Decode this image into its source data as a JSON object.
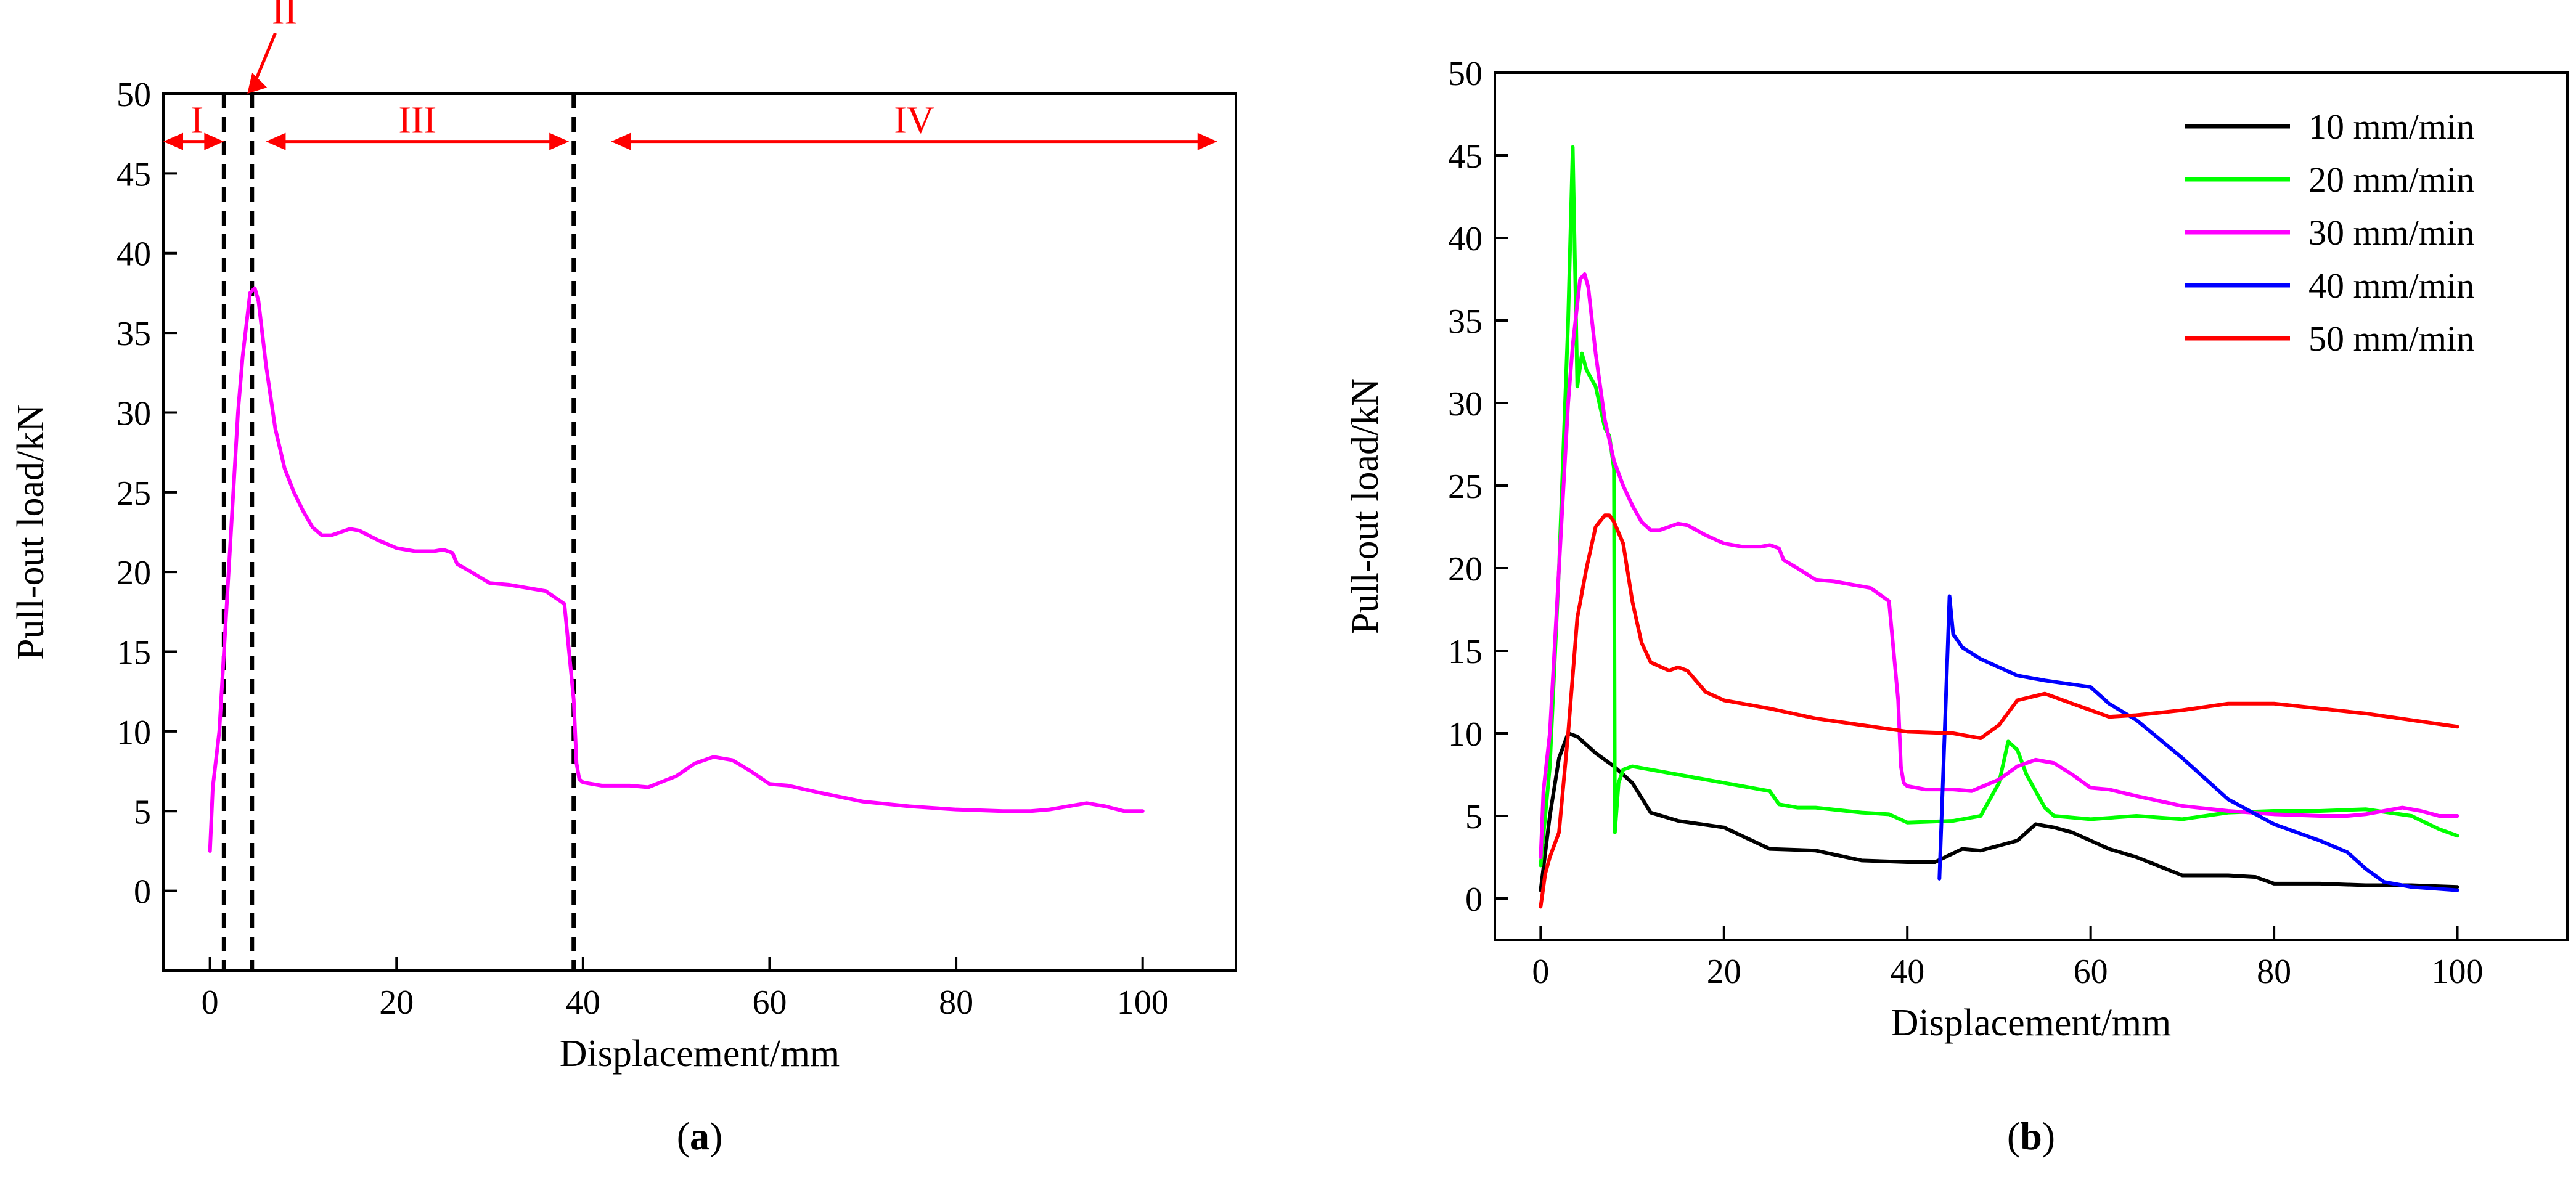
{
  "chart_data": [
    {
      "panel": "a",
      "caption": "(a)",
      "caption_open": "(",
      "caption_letter": "a",
      "caption_close": ")",
      "type": "line",
      "xlabel": "Displacement/mm",
      "ylabel": "Pull-out load/kN",
      "xlim": [
        -5,
        110
      ],
      "ylim": [
        -5,
        50
      ],
      "xticks": [
        0,
        20,
        40,
        60,
        80,
        100
      ],
      "yticks": [
        0,
        5,
        10,
        15,
        20,
        25,
        30,
        35,
        40,
        45,
        50
      ],
      "grid": false,
      "line_color": "#ff00ff",
      "stage_divider_color": "#000000",
      "stage_color": "#ff0000",
      "stage_dividers_x": [
        1.5,
        4.5,
        39
      ],
      "stages": [
        {
          "label": "I",
          "x_from": -5,
          "x_to": 1.5,
          "y": 47
        },
        {
          "label": "II",
          "x_at": 4,
          "y": 50,
          "arrow_from": [
            7,
            53.8
          ]
        },
        {
          "label": "III",
          "x_from": 6,
          "x_to": 38.5,
          "y": 47
        },
        {
          "label": "IV",
          "x_from": 43,
          "x_to": 108,
          "y": 47
        }
      ],
      "series": [
        {
          "name": "30 mm/min",
          "color": "#ff00ff",
          "x": [
            0,
            0.3,
            1,
            2,
            3,
            3.5,
            4.3,
            4.8,
            5.2,
            6,
            7,
            8,
            9,
            10,
            11,
            12,
            13,
            15,
            16,
            18,
            20,
            22,
            24,
            25,
            26,
            26.5,
            28,
            30,
            32,
            36,
            38,
            39,
            39.3,
            39.6,
            40,
            42,
            45,
            47,
            50,
            52,
            54,
            56,
            58,
            60,
            62,
            65,
            70,
            75,
            80,
            85,
            88,
            90,
            92,
            94,
            96,
            98,
            100
          ],
          "y": [
            2.5,
            6.5,
            10,
            20,
            30,
            33.5,
            37.5,
            37.8,
            37,
            33,
            29,
            26.5,
            25,
            23.8,
            22.8,
            22.3,
            22.3,
            22.7,
            22.6,
            22,
            21.5,
            21.3,
            21.3,
            21.4,
            21.2,
            20.5,
            20,
            19.3,
            19.2,
            18.8,
            18,
            12,
            8,
            7,
            6.8,
            6.6,
            6.6,
            6.5,
            7.2,
            8,
            8.4,
            8.2,
            7.5,
            6.7,
            6.6,
            6.2,
            5.6,
            5.3,
            5.1,
            5.0,
            5.0,
            5.1,
            5.3,
            5.5,
            5.3,
            5.0,
            5.0
          ]
        }
      ]
    },
    {
      "panel": "b",
      "caption": "(b)",
      "caption_open": "(",
      "caption_letter": "b",
      "caption_close": ")",
      "type": "line",
      "xlabel": "Displacement/mm",
      "ylabel": "Pull-out load/kN",
      "xlim": [
        -5,
        112
      ],
      "ylim": [
        -2.5,
        50
      ],
      "xticks": [
        0,
        20,
        40,
        60,
        80,
        100
      ],
      "yticks": [
        0,
        5,
        10,
        15,
        20,
        25,
        30,
        35,
        40,
        45,
        50
      ],
      "grid": false,
      "legend_position": "top-right",
      "series": [
        {
          "name": "10 mm/min",
          "color": "#000000",
          "x": [
            0,
            1,
            2,
            3,
            4,
            5,
            6,
            8,
            10,
            12,
            15,
            20,
            25,
            30,
            35,
            40,
            43,
            46,
            48,
            50,
            52,
            54,
            56,
            58,
            60,
            62,
            65,
            70,
            75,
            78,
            80,
            85,
            90,
            95,
            100
          ],
          "y": [
            0.5,
            5,
            8.5,
            10,
            9.8,
            9.3,
            8.8,
            8,
            7,
            5.2,
            4.7,
            4.3,
            3,
            2.9,
            2.3,
            2.2,
            2.2,
            3,
            2.9,
            3.2,
            3.5,
            4.5,
            4.3,
            4,
            3.5,
            3,
            2.5,
            1.4,
            1.4,
            1.3,
            0.9,
            0.9,
            0.8,
            0.8,
            0.7
          ]
        },
        {
          "name": "20 mm/min",
          "color": "#00ff00",
          "x": [
            0,
            1,
            2,
            3,
            3.5,
            4,
            4.5,
            5,
            6,
            7,
            7.5,
            8,
            8.1,
            8.5,
            9,
            10,
            12,
            15,
            20,
            25,
            26,
            28,
            30,
            35,
            38,
            40,
            45,
            48,
            50,
            51,
            52,
            53,
            54,
            55,
            56,
            60,
            65,
            70,
            75,
            80,
            85,
            90,
            95,
            98,
            100
          ],
          "y": [
            2,
            8,
            20,
            35,
            45.5,
            31,
            33,
            32,
            31,
            28.5,
            28,
            26,
            4,
            7,
            7.8,
            8,
            7.8,
            7.5,
            7,
            6.5,
            5.7,
            5.5,
            5.5,
            5.2,
            5.1,
            4.6,
            4.7,
            5,
            7,
            9.5,
            9,
            7.5,
            6.5,
            5.5,
            5,
            4.8,
            5,
            4.8,
            5.2,
            5.3,
            5.3,
            5.4,
            5,
            4.2,
            3.8
          ]
        },
        {
          "name": "30 mm/min",
          "color": "#ff00ff",
          "x": [
            0,
            0.3,
            1,
            2,
            3,
            3.5,
            4.3,
            4.8,
            5.2,
            6,
            7,
            8,
            9,
            10,
            11,
            12,
            13,
            15,
            16,
            18,
            20,
            22,
            24,
            25,
            26,
            26.5,
            28,
            30,
            32,
            36,
            38,
            39,
            39.3,
            39.6,
            40,
            42,
            45,
            47,
            50,
            52,
            54,
            56,
            58,
            60,
            62,
            65,
            70,
            75,
            80,
            85,
            88,
            90,
            92,
            94,
            96,
            98,
            100
          ],
          "y": [
            2.5,
            6.5,
            10,
            20,
            30,
            33.5,
            37.5,
            37.8,
            37,
            33,
            29,
            26.5,
            25,
            23.8,
            22.8,
            22.3,
            22.3,
            22.7,
            22.6,
            22,
            21.5,
            21.3,
            21.3,
            21.4,
            21.2,
            20.5,
            20,
            19.3,
            19.2,
            18.8,
            18,
            12,
            8,
            7,
            6.8,
            6.6,
            6.6,
            6.5,
            7.2,
            8,
            8.4,
            8.2,
            7.5,
            6.7,
            6.6,
            6.2,
            5.6,
            5.3,
            5.1,
            5.0,
            5.0,
            5.1,
            5.3,
            5.5,
            5.3,
            5.0,
            5.0
          ]
        },
        {
          "name": "40 mm/min",
          "color": "#0000ff",
          "x": [
            43.5,
            44.2,
            44.6,
            45,
            46,
            48,
            50,
            52,
            55,
            60,
            62,
            65,
            70,
            75,
            80,
            85,
            88,
            90,
            92,
            95,
            100
          ],
          "y": [
            1.2,
            12,
            18.3,
            16,
            15.2,
            14.5,
            14,
            13.5,
            13.2,
            12.8,
            11.8,
            10.8,
            8.5,
            6,
            4.5,
            3.5,
            2.8,
            1.8,
            1.0,
            0.7,
            0.5
          ]
        },
        {
          "name": "50 mm/min",
          "color": "#ff0000",
          "x": [
            0,
            0.5,
            1,
            2,
            3,
            4,
            5,
            6,
            7,
            7.5,
            8,
            9,
            10,
            11,
            12,
            14,
            15,
            16,
            18,
            20,
            25,
            30,
            35,
            40,
            45,
            48,
            50,
            52,
            55,
            58,
            62,
            65,
            70,
            75,
            80,
            85,
            90,
            95,
            100
          ],
          "y": [
            -0.5,
            1.5,
            2.5,
            4,
            10,
            17,
            20,
            22.5,
            23.2,
            23.2,
            22.8,
            21.5,
            18,
            15.5,
            14.3,
            13.8,
            14,
            13.8,
            12.5,
            12,
            11.5,
            10.9,
            10.5,
            10.1,
            10.0,
            9.7,
            10.5,
            12,
            12.4,
            11.8,
            11,
            11.1,
            11.4,
            11.8,
            11.8,
            11.5,
            11.2,
            10.8,
            10.4
          ]
        }
      ]
    }
  ]
}
